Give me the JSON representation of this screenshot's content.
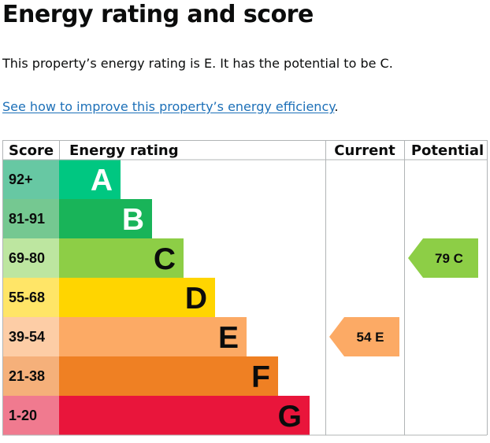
{
  "heading": "Energy rating and score",
  "summary": "This property’s energy rating is E. It has the potential to be C.",
  "improve_link": {
    "text": "See how to improve this property’s energy efficiency",
    "trailing": "."
  },
  "table": {
    "headers": {
      "score": "Score",
      "rating": "Energy rating",
      "current": "Current",
      "potential": "Potential"
    },
    "bands": [
      {
        "letter": "A",
        "range": "92+",
        "color": "#00c781",
        "score_bg": "#67c8a3"
      },
      {
        "letter": "B",
        "range": "81-91",
        "color": "#19b459",
        "score_bg": "#75c891"
      },
      {
        "letter": "C",
        "range": "69-80",
        "color": "#8dce46",
        "score_bg": "#bde6a0"
      },
      {
        "letter": "D",
        "range": "55-68",
        "color": "#ffd500",
        "score_bg": "#ffe567"
      },
      {
        "letter": "E",
        "range": "39-54",
        "color": "#fcaa65",
        "score_bg": "#fdcda6"
      },
      {
        "letter": "F",
        "range": "21-38",
        "color": "#ef8023",
        "score_bg": "#f5b07a"
      },
      {
        "letter": "G",
        "range": "1-20",
        "color": "#e9153b",
        "score_bg": "#f07a8f"
      }
    ],
    "current": {
      "score": "54",
      "letter": "E",
      "color": "#fcaa65"
    },
    "potential": {
      "score": "79",
      "letter": "C",
      "color": "#8dce46"
    }
  }
}
